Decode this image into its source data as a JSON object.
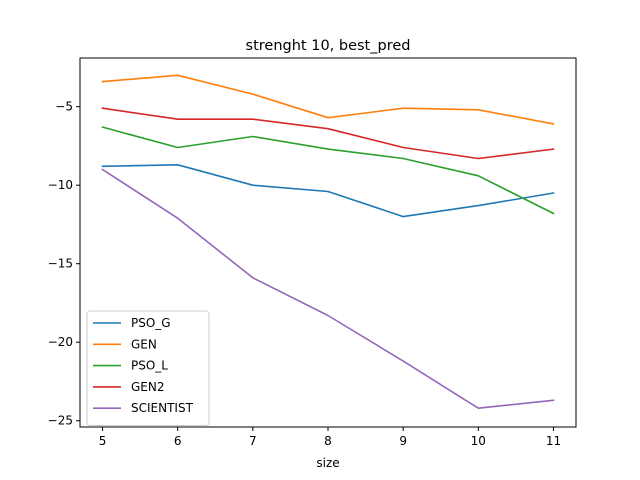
{
  "chart_data": {
    "type": "line",
    "title": "strenght 10, best_pred",
    "xlabel": "size",
    "ylabel": "",
    "x": [
      5,
      6,
      7,
      8,
      9,
      10,
      11
    ],
    "xlim": [
      4.7,
      11.3
    ],
    "ylim": [
      -25.4,
      -1.9
    ],
    "xticks": [
      5,
      6,
      7,
      8,
      9,
      10,
      11
    ],
    "yticks": [
      -5,
      -10,
      -15,
      -20,
      -25
    ],
    "ytick_labels": [
      "−5",
      "−10",
      "−15",
      "−20",
      "−25"
    ],
    "grid": false,
    "legend_position": "lower-left",
    "series": [
      {
        "name": "PSO_G",
        "color": "#1f77b4",
        "values": [
          -8.8,
          -8.7,
          -10.0,
          -10.4,
          -12.0,
          -11.3,
          -10.5
        ]
      },
      {
        "name": "GEN",
        "color": "#ff7f0e",
        "values": [
          -3.4,
          -3.0,
          -4.2,
          -5.7,
          -5.1,
          -5.2,
          -6.1
        ]
      },
      {
        "name": "PSO_L",
        "color": "#2ca02c",
        "values": [
          -6.3,
          -7.6,
          -6.9,
          -7.7,
          -8.3,
          -9.4,
          -11.8
        ]
      },
      {
        "name": "GEN2",
        "color": "#d62728",
        "values": [
          -5.1,
          -5.8,
          -5.8,
          -6.4,
          -7.6,
          -8.3,
          -7.7
        ]
      },
      {
        "name": "SCIENTIST",
        "color": "#9467bd",
        "values": [
          -9.0,
          -12.1,
          -15.9,
          -18.3,
          -21.2,
          -24.2,
          -23.7
        ]
      }
    ]
  }
}
